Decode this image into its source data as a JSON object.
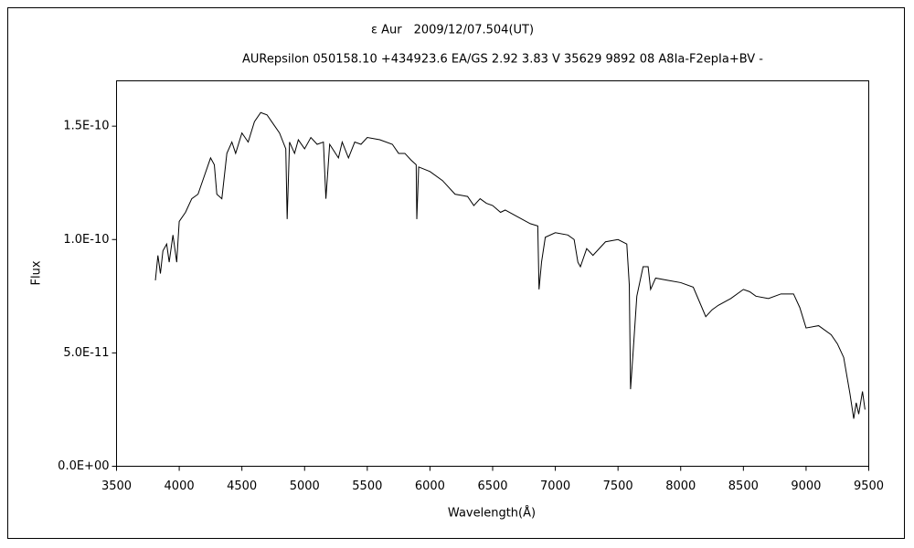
{
  "chart_data": {
    "type": "line",
    "title": "ε Aur　2009/12/07.504(UT)",
    "subtitle": "AURepsilon 050158.10 +434923.6 EA/GS 2.92 3.83 V 35629 9892 08 A8Ia-F2epIa+BV -",
    "x_label": "Wavelength(Å)",
    "y_label": "Flux",
    "color": "#000000",
    "xlim": [
      3500,
      9500
    ],
    "xticks": [
      3500,
      4000,
      4500,
      5000,
      5500,
      6000,
      6500,
      7000,
      7500,
      8000,
      8500,
      9000,
      9500
    ],
    "ylim": [
      0,
      1.7e-10
    ],
    "yticks": [
      {
        "value": 0,
        "label": "0.0E+00"
      },
      {
        "value": 5e-11,
        "label": "5.0E-11"
      },
      {
        "value": 1e-10,
        "label": "1.0E-10"
      },
      {
        "value": 1.5e-10,
        "label": "1.5E-10"
      }
    ],
    "x": [
      3810,
      3830,
      3850,
      3870,
      3900,
      3920,
      3950,
      3980,
      4000,
      4050,
      4100,
      4150,
      4200,
      4250,
      4280,
      4300,
      4340,
      4380,
      4420,
      4450,
      4500,
      4550,
      4600,
      4650,
      4700,
      4750,
      4800,
      4850,
      4861,
      4880,
      4920,
      4950,
      5000,
      5050,
      5100,
      5150,
      5170,
      5200,
      5270,
      5300,
      5350,
      5400,
      5450,
      5500,
      5600,
      5700,
      5750,
      5800,
      5850,
      5890,
      5895,
      5910,
      6000,
      6100,
      6200,
      6300,
      6350,
      6400,
      6450,
      6500,
      6563,
      6600,
      6700,
      6800,
      6860,
      6870,
      6890,
      6920,
      7000,
      7100,
      7150,
      7180,
      7200,
      7250,
      7300,
      7400,
      7500,
      7570,
      7590,
      7600,
      7620,
      7650,
      7700,
      7740,
      7760,
      7800,
      7900,
      8000,
      8100,
      8200,
      8250,
      8300,
      8400,
      8500,
      8550,
      8600,
      8700,
      8800,
      8900,
      8950,
      9000,
      9100,
      9200,
      9250,
      9300,
      9350,
      9380,
      9400,
      9420,
      9450,
      9470
    ],
    "values": [
      8.2e-11,
      9.3e-11,
      8.5e-11,
      9.5e-11,
      9.8e-11,
      9e-11,
      1.02e-10,
      9e-11,
      1.08e-10,
      1.12e-10,
      1.18e-10,
      1.2e-10,
      1.28e-10,
      1.36e-10,
      1.33e-10,
      1.2e-10,
      1.18e-10,
      1.38e-10,
      1.43e-10,
      1.38e-10,
      1.47e-10,
      1.43e-10,
      1.52e-10,
      1.56e-10,
      1.55e-10,
      1.51e-10,
      1.47e-10,
      1.4e-10,
      1.09e-10,
      1.43e-10,
      1.38e-10,
      1.44e-10,
      1.4e-10,
      1.45e-10,
      1.42e-10,
      1.43e-10,
      1.18e-10,
      1.42e-10,
      1.36e-10,
      1.43e-10,
      1.36e-10,
      1.43e-10,
      1.42e-10,
      1.45e-10,
      1.44e-10,
      1.42e-10,
      1.38e-10,
      1.38e-10,
      1.35e-10,
      1.33e-10,
      1.09e-10,
      1.32e-10,
      1.3e-10,
      1.26e-10,
      1.2e-10,
      1.19e-10,
      1.15e-10,
      1.18e-10,
      1.16e-10,
      1.15e-10,
      1.12e-10,
      1.13e-10,
      1.1e-10,
      1.07e-10,
      1.06e-10,
      7.8e-11,
      9e-11,
      1.01e-10,
      1.03e-10,
      1.02e-10,
      1e-10,
      9e-11,
      8.8e-11,
      9.6e-11,
      9.3e-11,
      9.9e-11,
      1e-10,
      9.8e-11,
      8e-11,
      3.4e-11,
      5e-11,
      7.5e-11,
      8.8e-11,
      8.8e-11,
      7.8e-11,
      8.3e-11,
      8.2e-11,
      8.1e-11,
      7.9e-11,
      6.6e-11,
      6.9e-11,
      7.1e-11,
      7.4e-11,
      7.8e-11,
      7.7e-11,
      7.5e-11,
      7.4e-11,
      7.6e-11,
      7.6e-11,
      7e-11,
      6.1e-11,
      6.2e-11,
      5.8e-11,
      5.4e-11,
      4.8e-11,
      3.2e-11,
      2.1e-11,
      2.8e-11,
      2.3e-11,
      3.3e-11,
      2.5e-11
    ]
  }
}
